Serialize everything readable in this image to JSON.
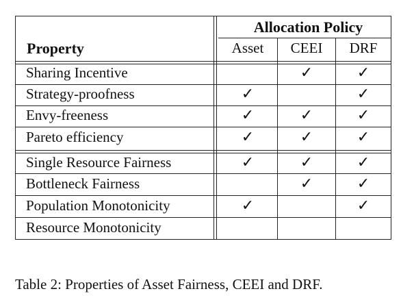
{
  "table": {
    "header_property": "Property",
    "header_group": "Allocation Policy",
    "columns": [
      "Asset",
      "CEEI",
      "DRF"
    ],
    "check_symbol": "✓",
    "rows": [
      {
        "label": "Sharing Incentive",
        "checks": [
          false,
          true,
          true
        ]
      },
      {
        "label": "Strategy-proofness",
        "checks": [
          true,
          false,
          true
        ]
      },
      {
        "label": "Envy-freeness",
        "checks": [
          true,
          true,
          true
        ]
      },
      {
        "label": "Pareto efficiency",
        "checks": [
          true,
          true,
          true
        ]
      },
      {
        "label": "Single Resource Fairness",
        "checks": [
          true,
          true,
          true
        ]
      },
      {
        "label": "Bottleneck Fairness",
        "checks": [
          false,
          true,
          true
        ]
      },
      {
        "label": "Population Monotonicity",
        "checks": [
          true,
          false,
          true
        ]
      },
      {
        "label": "Resource Monotonicity",
        "checks": [
          false,
          false,
          false
        ]
      }
    ]
  },
  "caption": "Table 2: Properties of Asset Fairness, CEEI and DRF."
}
